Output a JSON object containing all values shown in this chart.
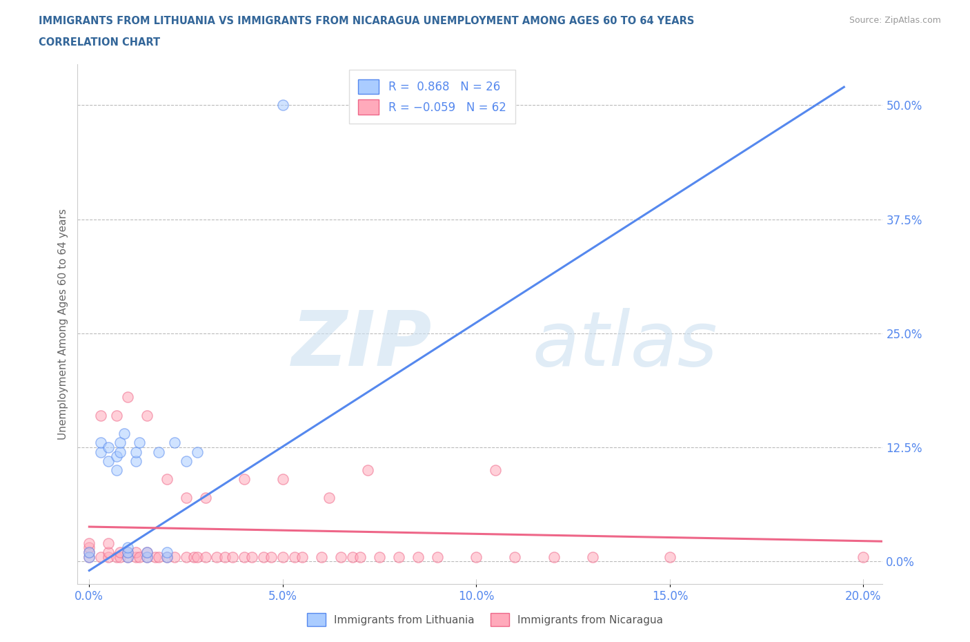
{
  "title_line1": "IMMIGRANTS FROM LITHUANIA VS IMMIGRANTS FROM NICARAGUA UNEMPLOYMENT AMONG AGES 60 TO 64 YEARS",
  "title_line2": "CORRELATION CHART",
  "source_text": "Source: ZipAtlas.com",
  "ylabel": "Unemployment Among Ages 60 to 64 years",
  "background_color": "#ffffff",
  "plot_bg_color": "#ffffff",
  "watermark_zip": "ZIP",
  "watermark_atlas": "atlas",
  "legend_label1": "Immigrants from Lithuania",
  "legend_label2": "Immigrants from Nicaragua",
  "blue_color": "#5588ee",
  "pink_color": "#ee6688",
  "blue_fill": "#aaccff",
  "pink_fill": "#ffaabb",
  "grid_color": "#bbbbbb",
  "title_color": "#336699",
  "tick_color": "#5588ee",
  "ytick_labels": [
    "0.0%",
    "12.5%",
    "25.0%",
    "37.5%",
    "50.0%"
  ],
  "ytick_values": [
    0.0,
    0.125,
    0.25,
    0.375,
    0.5
  ],
  "xtick_labels": [
    "0.0%",
    "5.0%",
    "10.0%",
    "15.0%",
    "20.0%"
  ],
  "xtick_values": [
    0.0,
    0.05,
    0.1,
    0.15,
    0.2
  ],
  "xlim": [
    -0.003,
    0.205
  ],
  "ylim": [
    -0.025,
    0.545
  ],
  "lithuania_x": [
    0.0,
    0.0,
    0.003,
    0.003,
    0.005,
    0.005,
    0.007,
    0.007,
    0.008,
    0.008,
    0.009,
    0.01,
    0.01,
    0.01,
    0.012,
    0.012,
    0.013,
    0.015,
    0.015,
    0.018,
    0.02,
    0.02,
    0.022,
    0.025,
    0.028,
    0.05
  ],
  "lithuania_y": [
    0.005,
    0.01,
    0.12,
    0.13,
    0.11,
    0.125,
    0.1,
    0.115,
    0.12,
    0.13,
    0.14,
    0.005,
    0.01,
    0.015,
    0.11,
    0.12,
    0.13,
    0.005,
    0.01,
    0.12,
    0.005,
    0.01,
    0.13,
    0.11,
    0.12,
    0.5
  ],
  "nicaragua_x": [
    0.0,
    0.0,
    0.0,
    0.0,
    0.003,
    0.003,
    0.005,
    0.005,
    0.005,
    0.007,
    0.007,
    0.008,
    0.008,
    0.01,
    0.01,
    0.01,
    0.012,
    0.012,
    0.013,
    0.015,
    0.015,
    0.015,
    0.017,
    0.018,
    0.02,
    0.02,
    0.022,
    0.025,
    0.025,
    0.027,
    0.028,
    0.03,
    0.03,
    0.033,
    0.035,
    0.037,
    0.04,
    0.04,
    0.042,
    0.045,
    0.047,
    0.05,
    0.05,
    0.053,
    0.055,
    0.06,
    0.062,
    0.065,
    0.068,
    0.07,
    0.072,
    0.075,
    0.08,
    0.085,
    0.09,
    0.1,
    0.105,
    0.11,
    0.12,
    0.13,
    0.15,
    0.2
  ],
  "nicaragua_y": [
    0.005,
    0.01,
    0.015,
    0.02,
    0.005,
    0.16,
    0.005,
    0.01,
    0.02,
    0.005,
    0.16,
    0.005,
    0.01,
    0.005,
    0.01,
    0.18,
    0.005,
    0.01,
    0.005,
    0.005,
    0.01,
    0.16,
    0.005,
    0.005,
    0.005,
    0.09,
    0.005,
    0.005,
    0.07,
    0.005,
    0.005,
    0.005,
    0.07,
    0.005,
    0.005,
    0.005,
    0.005,
    0.09,
    0.005,
    0.005,
    0.005,
    0.005,
    0.09,
    0.005,
    0.005,
    0.005,
    0.07,
    0.005,
    0.005,
    0.005,
    0.1,
    0.005,
    0.005,
    0.005,
    0.005,
    0.005,
    0.1,
    0.005,
    0.005,
    0.005,
    0.005,
    0.005
  ],
  "blue_line_x": [
    0.0,
    0.195
  ],
  "blue_line_y": [
    -0.01,
    0.52
  ],
  "pink_line_x": [
    0.0,
    0.205
  ],
  "pink_line_y": [
    0.038,
    0.022
  ],
  "marker_size": 120,
  "marker_alpha": 0.55
}
